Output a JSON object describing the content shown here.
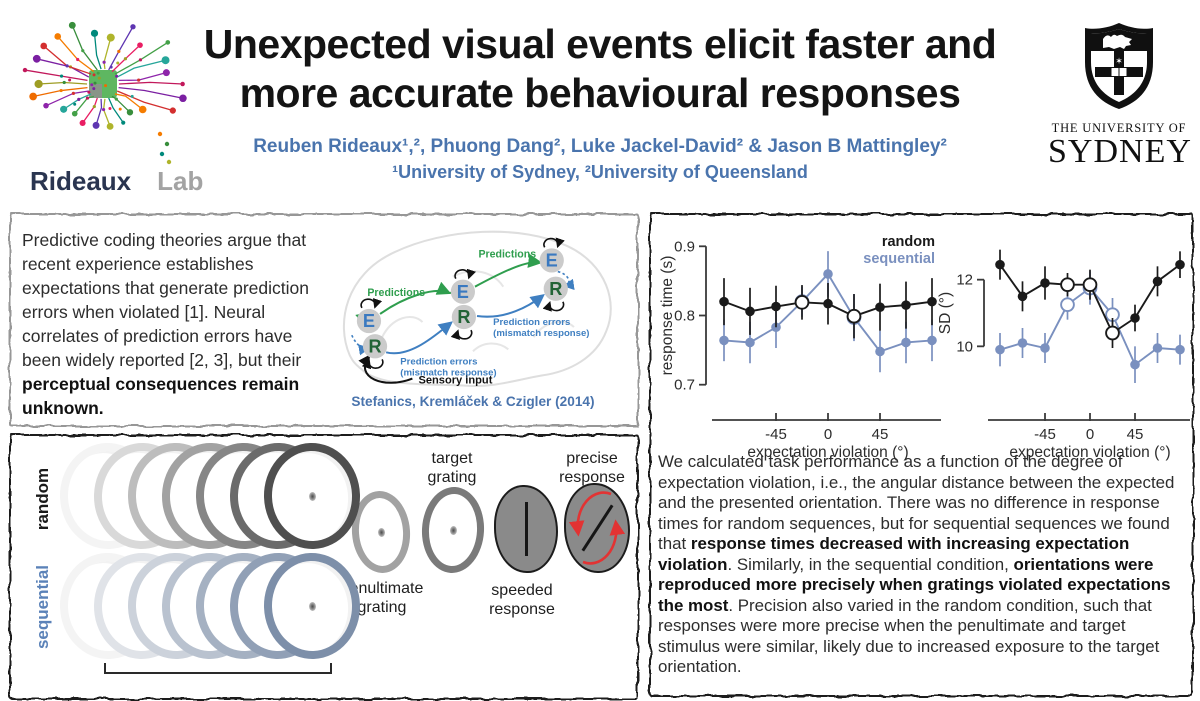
{
  "header": {
    "title_line1": "Unexpected visual events elicit faster and",
    "title_line2": "more accurate behavioural responses",
    "authors": "Reuben Rideaux¹,², Phuong Dang², Luke Jackel-David² & Jason B Mattingley²",
    "affiliations": "¹University of Sydney, ²University of Queensland",
    "accent_color": "#4a74ad",
    "lab_logo": {
      "word_primary": "Rideaux",
      "word_secondary": "Lab"
    },
    "university_logo": {
      "line1": "THE UNIVERSITY OF",
      "line2": "SYDNEY"
    }
  },
  "intro_panel": {
    "text_segments": [
      {
        "t": "Predictive coding theories argue that recent experience establishes expectations that generate prediction errors when violated [1]. Neural correlates of prediction errors have been widely reported [2, 3], but their "
      },
      {
        "t": "perceptual consequences remain unknown.",
        "b": true
      }
    ],
    "diagram": {
      "node_e": "E",
      "node_r": "R",
      "predictions_label": "Predictions",
      "errors_label_line1": "Prediction errors",
      "errors_label_line2": "(mismatch response)",
      "sensory_input_label": "Sensory input",
      "citation": "Stefanics, Kremláček & Czigler (2014)",
      "predictions_color": "#2f9e4e",
      "errors_color": "#3f7fc1",
      "citation_color": "#4a74ad"
    }
  },
  "design_panel": {
    "num_gratings": 7,
    "rows": [
      {
        "label": "random",
        "label_color": "#1a1a1a",
        "ring_start": "#f4f4f4",
        "ring_end": "#4f4f4f"
      },
      {
        "label": "sequential",
        "label_color": "#5b82b8",
        "ring_start": "#f4f4f4",
        "ring_end": "#7d8fa9"
      }
    ],
    "labels": {
      "target_line1": "target",
      "target_line2": "grating",
      "precise_line1": "precise",
      "precise_line2": "response",
      "penultimate_line1": "penultimate",
      "penultimate_line2": "grating",
      "speeded_line1": "speeded",
      "speeded_line2": "response"
    }
  },
  "results_panel": {
    "text_segments": [
      {
        "t": "We calculated task performance as a function of the degree of expectation violation, i.e., the angular distance between the expected and the presented orientation. There was no difference in response times for random sequences, but for sequential sequences we found that "
      },
      {
        "t": "response times decreased with increasing expectation violation",
        "b": true
      },
      {
        "t": ". Similarly, in the sequential condition, "
      },
      {
        "t": "orientations were reproduced more precisely when gratings violated expectations the most",
        "b": true
      },
      {
        "t": ". Precision also varied in the random condition, such that responses were more precise when the penultimate and target stimulus were similar, likely due to increased exposure to the target orientation."
      }
    ]
  },
  "chart_data": [
    {
      "type": "line",
      "x": [
        -90,
        -67.5,
        -45,
        -22.5,
        0,
        22.5,
        45,
        67.5,
        90
      ],
      "series": [
        {
          "name": "random",
          "color": "#1a1a1a",
          "values": [
            0.82,
            0.806,
            0.813,
            0.819,
            0.817,
            0.799,
            0.812,
            0.815,
            0.82
          ],
          "errors": [
            0.034,
            0.034,
            0.03,
            0.025,
            0.03,
            0.032,
            0.034,
            0.034,
            0.034
          ],
          "open_indices": [
            3,
            5
          ]
        },
        {
          "name": "sequential",
          "color": "#7a90bf",
          "values": [
            0.764,
            0.761,
            0.783,
            0.82,
            0.86,
            0.797,
            0.748,
            0.761,
            0.764
          ],
          "errors": [
            0.03,
            0.03,
            0.03,
            0.022,
            0.033,
            0.034,
            0.03,
            0.03,
            0.03
          ],
          "open_indices": [
            3,
            5
          ]
        }
      ],
      "title": "",
      "ylabel": "response time (s)",
      "xlabel": "expectation violation (°)",
      "yticks": [
        0.7,
        0.8,
        0.9
      ],
      "xticks": [
        -45,
        0,
        45
      ],
      "ylim": [
        0.688,
        0.912
      ],
      "legend_position": "top-right",
      "grid": false
    },
    {
      "type": "line",
      "x": [
        -90,
        -67.5,
        -45,
        -22.5,
        0,
        22.5,
        45,
        67.5,
        90
      ],
      "series": [
        {
          "name": "random",
          "color": "#1a1a1a",
          "values": [
            12.45,
            11.5,
            11.9,
            11.85,
            11.85,
            10.4,
            10.85,
            11.95,
            12.45
          ],
          "errors": [
            0.45,
            0.45,
            0.5,
            0.35,
            0.45,
            0.45,
            0.4,
            0.45,
            0.4
          ],
          "open_indices": [
            3,
            4,
            5
          ]
        },
        {
          "name": "sequential",
          "color": "#7a90bf",
          "values": [
            9.9,
            10.1,
            9.95,
            11.25,
            11.75,
            10.95,
            9.45,
            9.95,
            9.9
          ],
          "errors": [
            0.5,
            0.45,
            0.45,
            0.45,
            0.5,
            0.5,
            0.55,
            0.45,
            0.45
          ],
          "open_indices": [
            3,
            4,
            5
          ]
        }
      ],
      "title": "",
      "ylabel": "SD (°)",
      "xlabel": "expectation violation (°)",
      "yticks": [
        10,
        12
      ],
      "xticks": [
        -45,
        0,
        45
      ],
      "ylim": [
        8.6,
        13.25
      ],
      "legend_position": "none",
      "grid": false
    }
  ]
}
